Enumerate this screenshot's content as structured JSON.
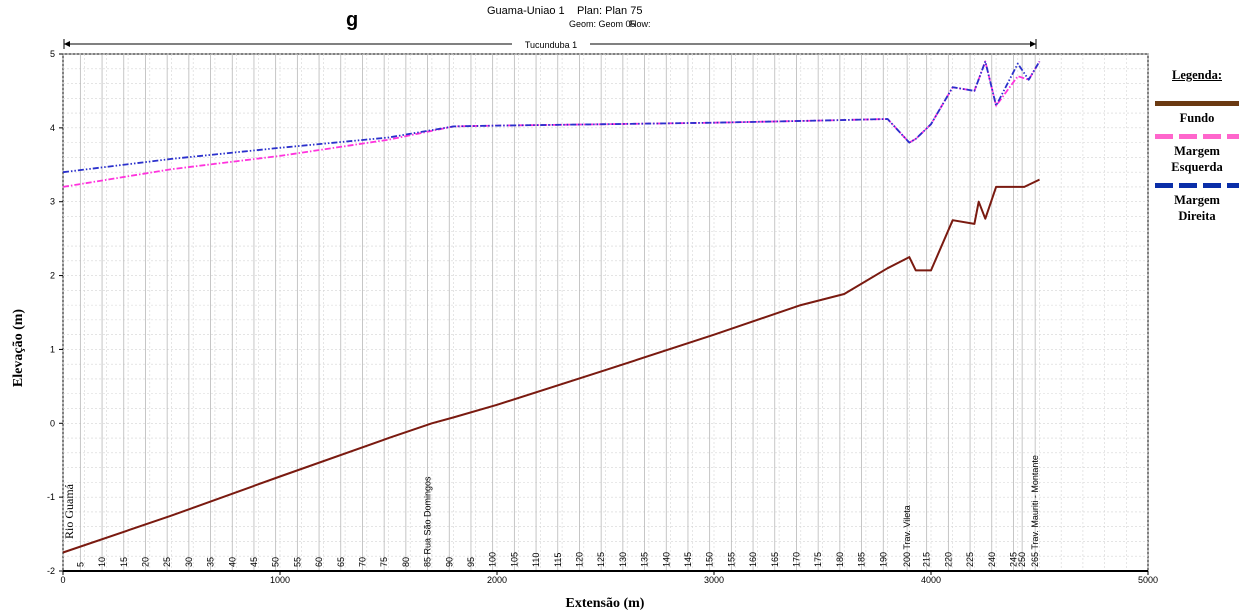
{
  "header": {
    "title_fragment": "g",
    "project": "Guama-Uniao 1",
    "plan": "Plan: Plan 75",
    "geom": "Geom: Geom 05",
    "flow": "Flow:"
  },
  "reach_label": "Tucunduba 1",
  "legend": {
    "title": "Legenda:",
    "items": [
      {
        "name": "Fundo",
        "color": "#6b3a12",
        "style": "solid"
      },
      {
        "name": "Margem Esquerda",
        "color": "#ff66cc",
        "style": "dashed"
      },
      {
        "name": "Margem Direita",
        "color": "#0a2ea8",
        "style": "dashed"
      }
    ]
  },
  "chart_data": {
    "type": "line",
    "xlabel": "Extensão (m)",
    "ylabel": "Elevação (m)",
    "xlim": [
      0,
      5000
    ],
    "ylim": [
      -2,
      5
    ],
    "xticks": [
      0,
      1000,
      2000,
      3000,
      4000,
      5000
    ],
    "yticks": [
      -2,
      -1,
      0,
      1,
      2,
      3,
      4,
      5
    ],
    "grid": true,
    "legend_position": "right",
    "series": [
      {
        "name": "Fundo",
        "color": "#7a1a10",
        "style": "solid",
        "x": [
          0,
          500,
          1000,
          1500,
          1700,
          1800,
          2000,
          2500,
          3000,
          3400,
          3600,
          3800,
          3900,
          3930,
          4000,
          4100,
          4200,
          4220,
          4250,
          4300,
          4400,
          4430,
          4500
        ],
        "y": [
          -1.75,
          -1.25,
          -0.72,
          -0.2,
          0.0,
          0.08,
          0.25,
          0.72,
          1.2,
          1.6,
          1.75,
          2.1,
          2.25,
          2.07,
          2.07,
          2.75,
          2.7,
          3.0,
          2.77,
          3.2,
          3.2,
          3.2,
          3.3
        ]
      },
      {
        "name": "Margem Esquerda",
        "color": "#ff33dd",
        "style": "dashdot",
        "x": [
          0,
          500,
          1000,
          1500,
          1800,
          2000,
          2500,
          3000,
          3500,
          3800,
          3900,
          3930,
          4000,
          4100,
          4200,
          4250,
          4300,
          4400,
          4450,
          4500
        ],
        "y": [
          3.2,
          3.44,
          3.62,
          3.84,
          4.02,
          4.03,
          4.05,
          4.07,
          4.1,
          4.12,
          3.8,
          3.85,
          4.05,
          4.55,
          4.5,
          4.9,
          4.3,
          4.7,
          4.65,
          4.9
        ]
      },
      {
        "name": "Margem Direita",
        "color": "#2a30cc",
        "style": "dashdotdot",
        "x": [
          0,
          500,
          1000,
          1500,
          1800,
          2000,
          2500,
          3000,
          3500,
          3800,
          3900,
          3930,
          4000,
          4100,
          4200,
          4250,
          4300,
          4400,
          4450,
          4500
        ],
        "y": [
          3.4,
          3.58,
          3.73,
          3.87,
          4.02,
          4.03,
          4.05,
          4.07,
          4.1,
          4.12,
          3.8,
          3.85,
          4.05,
          4.55,
          4.5,
          4.9,
          4.3,
          4.87,
          4.65,
          4.9
        ]
      }
    ],
    "stations": [
      {
        "x": 80,
        "label": "5"
      },
      {
        "x": 180,
        "label": "10"
      },
      {
        "x": 280,
        "label": "15"
      },
      {
        "x": 380,
        "label": "20"
      },
      {
        "x": 480,
        "label": "25"
      },
      {
        "x": 580,
        "label": "30"
      },
      {
        "x": 680,
        "label": "35"
      },
      {
        "x": 780,
        "label": "40"
      },
      {
        "x": 880,
        "label": "45"
      },
      {
        "x": 980,
        "label": "50"
      },
      {
        "x": 1080,
        "label": "55"
      },
      {
        "x": 1180,
        "label": "60"
      },
      {
        "x": 1280,
        "label": "65"
      },
      {
        "x": 1380,
        "label": "70"
      },
      {
        "x": 1480,
        "label": "75"
      },
      {
        "x": 1580,
        "label": "80"
      },
      {
        "x": 1680,
        "label": "85 Rua São Domingos"
      },
      {
        "x": 1780,
        "label": "90"
      },
      {
        "x": 1880,
        "label": "95"
      },
      {
        "x": 1980,
        "label": "100"
      },
      {
        "x": 2080,
        "label": "105"
      },
      {
        "x": 2180,
        "label": "110"
      },
      {
        "x": 2280,
        "label": "115"
      },
      {
        "x": 2380,
        "label": "120"
      },
      {
        "x": 2480,
        "label": "125"
      },
      {
        "x": 2580,
        "label": "130"
      },
      {
        "x": 2680,
        "label": "135"
      },
      {
        "x": 2780,
        "label": "140"
      },
      {
        "x": 2880,
        "label": "145"
      },
      {
        "x": 2980,
        "label": "150"
      },
      {
        "x": 3080,
        "label": "155"
      },
      {
        "x": 3180,
        "label": "160"
      },
      {
        "x": 3280,
        "label": "165"
      },
      {
        "x": 3380,
        "label": "170"
      },
      {
        "x": 3480,
        "label": "175"
      },
      {
        "x": 3580,
        "label": "180"
      },
      {
        "x": 3680,
        "label": "185"
      },
      {
        "x": 3780,
        "label": "190"
      },
      {
        "x": 3890,
        "label": "200 Trav. Vileta"
      },
      {
        "x": 3980,
        "label": "215"
      },
      {
        "x": 4080,
        "label": "220"
      },
      {
        "x": 4180,
        "label": "225"
      },
      {
        "x": 4280,
        "label": "240"
      },
      {
        "x": 4380,
        "label": "245"
      },
      {
        "x": 4420,
        "label": "250"
      },
      {
        "x": 4480,
        "label": "265 Trav. Mauriti - Montante"
      }
    ],
    "start_label": "Rio Guamá"
  }
}
